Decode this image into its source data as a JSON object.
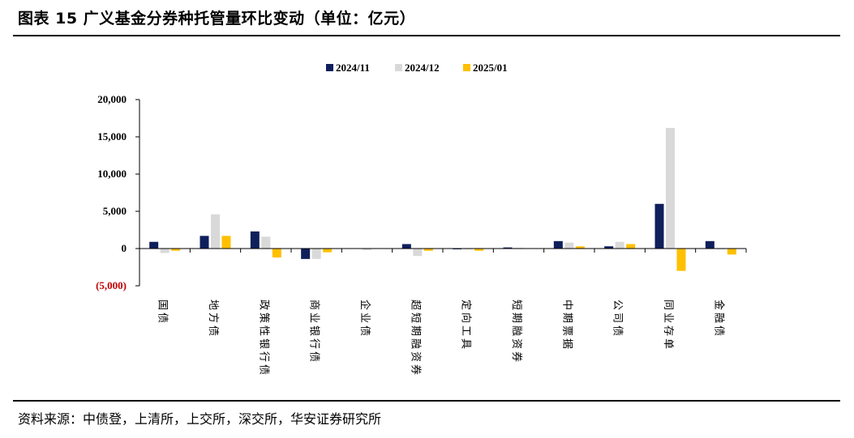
{
  "header": {
    "title": "图表 15  广义基金分券种托管量环比变动（单位：亿元）"
  },
  "footer": {
    "source": "资料来源：中债登，上清所，上交所，深交所，华安证券研究所"
  },
  "chart_data": {
    "type": "bar",
    "categories": [
      "国债",
      "地方债",
      "政策性银行债",
      "商业银行债",
      "企业债",
      "超短期融资券",
      "定向工具",
      "短期融资券",
      "中期票据",
      "公司债",
      "同业存单",
      "金融债"
    ],
    "series": [
      {
        "name": "2024/11",
        "color": "#0f1f5c",
        "values": [
          900,
          1700,
          2300,
          -1400,
          0,
          600,
          -100,
          150,
          1000,
          300,
          6000,
          1000
        ]
      },
      {
        "name": "2024/12",
        "color": "#d9d9d9",
        "values": [
          -600,
          4600,
          1600,
          -1400,
          -200,
          -1000,
          -100,
          100,
          800,
          900,
          16200,
          -100
        ]
      },
      {
        "name": "2025/01",
        "color": "#ffc000",
        "values": [
          -300,
          1700,
          -1200,
          -500,
          0,
          -300,
          -300,
          0,
          300,
          600,
          -3000,
          -800
        ]
      }
    ],
    "yticks": [
      {
        "value": 20000,
        "label": "20,000",
        "color": "#000000"
      },
      {
        "value": 15000,
        "label": "15,000",
        "color": "#000000"
      },
      {
        "value": 10000,
        "label": "10,000",
        "color": "#000000"
      },
      {
        "value": 5000,
        "label": "5,000",
        "color": "#000000"
      },
      {
        "value": 0,
        "label": "0",
        "color": "#000000"
      },
      {
        "value": -5000,
        "label": "(5,000)",
        "color": "#c00000"
      }
    ],
    "ylim": [
      -5000,
      20000
    ],
    "legend": "top-center",
    "grid": false
  }
}
